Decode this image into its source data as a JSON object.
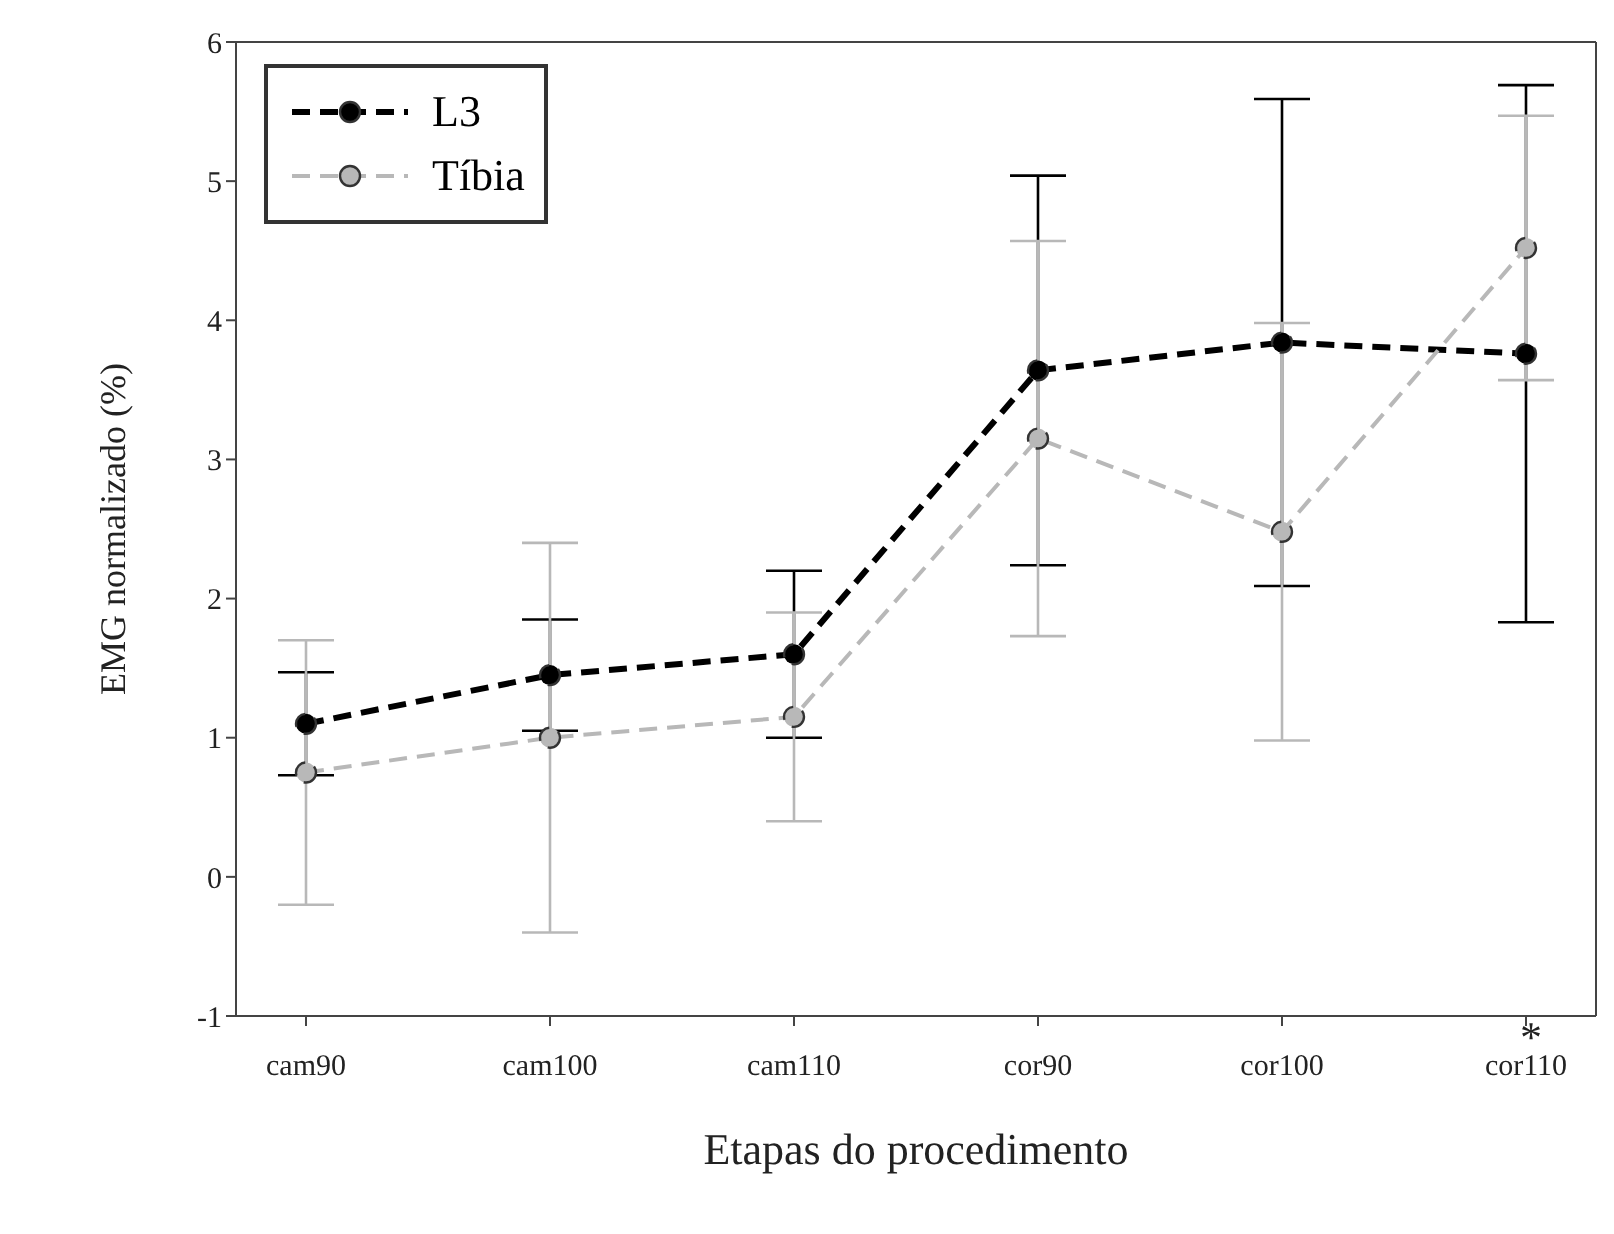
{
  "chart_data": {
    "type": "line",
    "xlabel": "Etapas do procedimento",
    "ylabel": "EMG normalizado (%)",
    "categories": [
      "cam90",
      "cam100",
      "cam110",
      "cor90",
      "cor100",
      "cor110"
    ],
    "series": [
      {
        "name": "L3",
        "color": "#000000",
        "values": [
          1.1,
          1.45,
          1.6,
          3.64,
          3.84,
          3.76
        ],
        "errors": [
          0.37,
          0.4,
          0.6,
          1.4,
          1.75,
          1.93
        ]
      },
      {
        "name": "Tíbia",
        "color": "#b8b8b8",
        "values": [
          0.75,
          1.0,
          1.15,
          3.15,
          2.48,
          4.52
        ],
        "errors": [
          0.95,
          1.4,
          0.75,
          1.42,
          1.5,
          0.95
        ]
      }
    ],
    "ylim": [
      -1,
      6
    ],
    "yticks": [
      -1,
      0,
      1,
      2,
      3,
      4,
      5,
      6
    ],
    "legend": "top left",
    "marker": "circle",
    "line_style": "dashed",
    "annotations": [
      "*"
    ]
  }
}
